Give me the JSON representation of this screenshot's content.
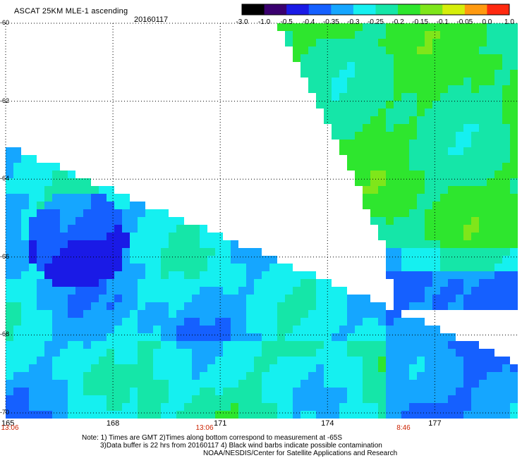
{
  "header": {
    "title": "ASCAT 25KM MLE-1 ascending",
    "date": "20160117"
  },
  "colorbar": {
    "labels": [
      "-3.0",
      "-1.0",
      "-0.5",
      "-0.4",
      "-0.35",
      "-0.3",
      "-0.25",
      "-0.2",
      "-0.15",
      "-0.1",
      "-0.05",
      "0.0",
      "1.0"
    ],
    "colors": [
      "#000000",
      "#3a006f",
      "#1a1ae6",
      "#1560ff",
      "#15a6ff",
      "#15f0f0",
      "#15e6a8",
      "#2ee62e",
      "#7fe61a",
      "#d6ee0a",
      "#ff9a10",
      "#ff2a10"
    ]
  },
  "axes": {
    "lat_labels": [
      "-60",
      "-62",
      "-64",
      "-66",
      "-68",
      "-70"
    ],
    "lon_labels": [
      "165",
      "168",
      "171",
      "174",
      "177"
    ],
    "time_labels": [
      "13:06",
      "13:06",
      "8:46"
    ]
  },
  "notes": {
    "line1": "Note: 1) Times are GMT 2)Times along bottom correspond to measurement at -65S",
    "line2": "3)Data buffer is 22 hrs from 20160117 4) Black wind barbs indicate possible contamination",
    "line3": "NOAA/NESDIS/Center for Satellite Applications and Research"
  },
  "chart_data": {
    "type": "heatmap",
    "title": "ASCAT 25KM MLE-1 ascending",
    "subtitle": "20160117",
    "x_ticks": [
      165,
      168,
      171,
      174,
      177
    ],
    "y_ticks": [
      -60,
      -62,
      -64,
      -66,
      -68,
      -70
    ],
    "xlim": [
      165,
      179.3
    ],
    "ylim": [
      -70,
      -60
    ],
    "colorbar_levels": [
      -3.0,
      -1.0,
      -0.5,
      -0.4,
      -0.35,
      -0.3,
      -0.25,
      -0.2,
      -0.15,
      -0.1,
      -0.05,
      0.0,
      1.0
    ],
    "grid": true,
    "regions": [
      {
        "area": "west swath (lon 165-174, lat -64 to -70)",
        "typical_value_range": [
          -0.4,
          -0.25
        ]
      },
      {
        "area": "east swath north (lon 173-179, lat -60 to -66)",
        "typical_value_range": [
          -0.25,
          -0.15
        ]
      },
      {
        "area": "east swath south (lon 175-179, lat -66 to -70)",
        "typical_value_range": [
          -0.4,
          -0.3
        ]
      }
    ]
  }
}
